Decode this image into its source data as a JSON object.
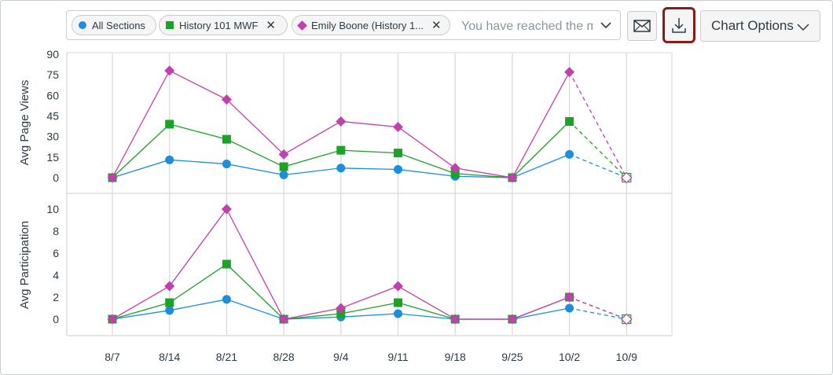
{
  "toolbar": {
    "chips": [
      {
        "label": "All Sections",
        "marker": "circle",
        "removable": false
      },
      {
        "label": "History 101 MWF",
        "marker": "square",
        "removable": true
      },
      {
        "label": "Emily Boone (History 1...",
        "marker": "diamond",
        "removable": true
      }
    ],
    "filter_placeholder": "You have reached the maximum",
    "message_icon": "envelope-icon",
    "download_icon": "download-icon",
    "chart_options_label": "Chart Options"
  },
  "colors": {
    "all_sections": "#1a8fe0",
    "history_101": "#1aa325",
    "emily_boone": "#c23fb0",
    "highlight_border": "#8b1a1a",
    "gridline": "#d4d8db"
  },
  "chart_data": [
    {
      "type": "line",
      "title": "",
      "ylabel": "Avg Page Views",
      "xlabel": "",
      "ylim": [
        0,
        90
      ],
      "yticks": [
        0,
        15,
        30,
        45,
        60,
        75,
        90
      ],
      "categories": [
        "8/7",
        "8/14",
        "8/21",
        "8/28",
        "9/4",
        "9/11",
        "9/18",
        "9/25",
        "10/2",
        "10/9"
      ],
      "dashed_from_index": 8,
      "series": [
        {
          "name": "All Sections",
          "marker": "circle",
          "values": [
            0,
            13,
            10,
            2,
            7,
            6,
            1,
            0,
            17,
            0
          ]
        },
        {
          "name": "History 101 MWF",
          "marker": "square",
          "values": [
            0,
            39,
            28,
            8,
            20,
            18,
            3,
            0,
            41,
            0
          ]
        },
        {
          "name": "Emily Boone (History 1...",
          "marker": "diamond",
          "values": [
            0,
            78,
            57,
            17,
            41,
            37,
            7,
            0,
            77,
            0
          ]
        }
      ]
    },
    {
      "type": "line",
      "title": "",
      "ylabel": "Avg Participation",
      "xlabel": "",
      "ylim": [
        0,
        10
      ],
      "yticks": [
        0,
        2,
        4,
        6,
        8,
        10
      ],
      "categories": [
        "8/7",
        "8/14",
        "8/21",
        "8/28",
        "9/4",
        "9/11",
        "9/18",
        "9/25",
        "10/2",
        "10/9"
      ],
      "dashed_from_index": 8,
      "series": [
        {
          "name": "All Sections",
          "marker": "circle",
          "values": [
            0,
            0.8,
            1.8,
            0,
            0.2,
            0.5,
            0,
            0,
            1,
            0
          ]
        },
        {
          "name": "History 101 MWF",
          "marker": "square",
          "values": [
            0,
            1.5,
            5,
            0,
            0.5,
            1.5,
            0,
            0,
            2,
            0
          ]
        },
        {
          "name": "Emily Boone (History 1...",
          "marker": "diamond",
          "values": [
            0,
            3,
            10,
            0,
            1,
            3,
            0,
            0,
            2,
            0
          ]
        }
      ]
    }
  ]
}
